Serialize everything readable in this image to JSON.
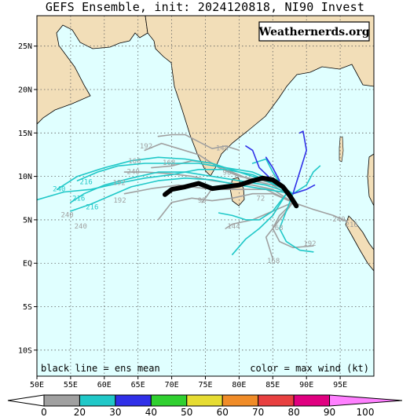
{
  "title": "GEFS Ensemble, init: 2024120818, NI90 Invest",
  "brand": "Weathernerds.org",
  "footer": {
    "left": "black line = ens mean",
    "right": "color = max wind (kt)"
  },
  "lat_labels": [
    "25N",
    "20N",
    "15N",
    "10N",
    "5N",
    "EQ",
    "5S",
    "10S"
  ],
  "lon_labels": [
    "50E",
    "55E",
    "60E",
    "65E",
    "70E",
    "75E",
    "80E",
    "85E",
    "90E",
    "95E"
  ],
  "colorbar": {
    "labels": [
      "0",
      "20",
      "30",
      "40",
      "50",
      "60",
      "70",
      "80",
      "90",
      "100"
    ],
    "colors": [
      "#a0a0a0",
      "#20c8c8",
      "#3030e8",
      "#30d030",
      "#e6dc32",
      "#f08c28",
      "#e84040",
      "#e00080",
      "#ff80ff"
    ]
  },
  "track_colors": {
    "weak": "#a0a0a0",
    "ts": "#20c8c8",
    "strong": "#3030e8",
    "mean": "#000000"
  },
  "hour_labels": [
    {
      "text": "192",
      "lon": 66.2,
      "lat": 13.2,
      "c": "weak"
    },
    {
      "text": "168",
      "lon": 64.5,
      "lat": 11.5,
      "c": "weak"
    },
    {
      "text": "168",
      "lon": 69.6,
      "lat": 11.3,
      "c": "weak"
    },
    {
      "text": "144",
      "lon": 77.5,
      "lat": 13.0,
      "c": "weak"
    },
    {
      "text": "96",
      "lon": 78.2,
      "lat": 10.2,
      "c": "weak"
    },
    {
      "text": "240",
      "lon": 64.3,
      "lat": 10.3,
      "c": "weak"
    },
    {
      "text": "192",
      "lon": 62.2,
      "lat": 9.0,
      "c": "weak"
    },
    {
      "text": "216",
      "lon": 57.3,
      "lat": 9.1,
      "c": "ts"
    },
    {
      "text": "240",
      "lon": 53.3,
      "lat": 8.3,
      "c": "ts"
    },
    {
      "text": "216",
      "lon": 56.2,
      "lat": 7.2,
      "c": "ts"
    },
    {
      "text": "216",
      "lon": 58.2,
      "lat": 6.2,
      "c": "ts"
    },
    {
      "text": "192",
      "lon": 62.3,
      "lat": 7.0,
      "c": "weak"
    },
    {
      "text": "240",
      "lon": 54.5,
      "lat": 5.3,
      "c": "weak"
    },
    {
      "text": "240",
      "lon": 56.5,
      "lat": 4.0,
      "c": "weak"
    },
    {
      "text": "95",
      "lon": 74.5,
      "lat": 7.0,
      "c": "weak"
    },
    {
      "text": "72",
      "lon": 83.2,
      "lat": 7.2,
      "c": "weak"
    },
    {
      "text": "144",
      "lon": 79.2,
      "lat": 4.0,
      "c": "weak"
    },
    {
      "text": "168",
      "lon": 85.6,
      "lat": 3.8,
      "c": "weak"
    },
    {
      "text": "192",
      "lon": 90.5,
      "lat": 2.0,
      "c": "weak"
    },
    {
      "text": "168",
      "lon": 85.1,
      "lat": 0.0,
      "c": "weak"
    },
    {
      "text": "240",
      "lon": 94.8,
      "lat": 4.8,
      "c": "weak"
    },
    {
      "text": "216",
      "lon": 96.7,
      "lat": 4.2,
      "c": "weak"
    }
  ],
  "tracks": [
    {
      "c": "weak",
      "pts": [
        [
          88.5,
          7
        ],
        [
          86,
          9
        ],
        [
          83,
          9.6
        ],
        [
          80,
          10
        ],
        [
          77,
          11
        ],
        [
          74,
          12.5
        ],
        [
          71,
          13.2
        ],
        [
          68.5,
          13.8
        ],
        [
          66,
          13
        ]
      ]
    },
    {
      "c": "weak",
      "pts": [
        [
          88,
          7.5
        ],
        [
          85,
          9
        ],
        [
          82,
          9.5
        ],
        [
          79,
          10.5
        ],
        [
          76,
          11.5
        ],
        [
          73,
          11.8
        ],
        [
          70,
          11.2
        ],
        [
          67,
          11
        ]
      ]
    },
    {
      "c": "weak",
      "pts": [
        [
          88,
          7
        ],
        [
          85,
          8.5
        ],
        [
          82,
          9
        ],
        [
          79,
          9.2
        ],
        [
          76,
          9.5
        ],
        [
          73,
          10
        ],
        [
          70,
          10.3
        ],
        [
          66,
          10.5
        ],
        [
          63,
          10.5
        ]
      ]
    },
    {
      "c": "weak",
      "pts": [
        [
          88,
          7
        ],
        [
          84,
          8.5
        ],
        [
          81,
          8.5
        ],
        [
          78,
          8.5
        ],
        [
          75,
          8.6
        ],
        [
          71,
          9
        ],
        [
          67,
          8.6
        ],
        [
          63,
          8
        ]
      ]
    },
    {
      "c": "weak",
      "pts": [
        [
          88,
          7
        ],
        [
          85,
          8
        ],
        [
          82,
          8
        ],
        [
          79,
          7.5
        ],
        [
          76,
          7.2
        ],
        [
          73,
          7.5
        ],
        [
          70,
          7
        ],
        [
          68,
          5
        ]
      ]
    },
    {
      "c": "weak",
      "pts": [
        [
          88,
          7
        ],
        [
          85,
          6
        ],
        [
          82,
          5
        ],
        [
          79,
          4.5
        ],
        [
          78,
          4
        ]
      ]
    },
    {
      "c": "weak",
      "pts": [
        [
          88,
          7
        ],
        [
          86,
          5.5
        ],
        [
          85,
          4
        ],
        [
          86,
          2.5
        ],
        [
          88,
          1.8
        ],
        [
          91,
          2
        ]
      ]
    },
    {
      "c": "weak",
      "pts": [
        [
          88,
          7
        ],
        [
          86,
          5
        ],
        [
          84,
          3
        ],
        [
          85,
          0.5
        ]
      ]
    },
    {
      "c": "weak",
      "pts": [
        [
          88,
          7
        ],
        [
          91,
          6.2
        ],
        [
          94,
          5.5
        ],
        [
          96,
          4.8
        ]
      ]
    },
    {
      "c": "weak",
      "pts": [
        [
          80,
          13
        ],
        [
          78,
          13.5
        ],
        [
          76,
          13.2
        ],
        [
          74,
          14
        ],
        [
          72,
          14.8
        ],
        [
          70,
          14.8
        ],
        [
          68,
          14.6
        ]
      ]
    },
    {
      "c": "weak",
      "pts": [
        [
          78,
          9
        ],
        [
          76,
          8.6
        ],
        [
          75,
          7.5
        ],
        [
          74.5,
          7
        ]
      ]
    },
    {
      "c": "ts",
      "pts": [
        [
          88,
          8
        ],
        [
          85,
          9.5
        ],
        [
          82,
          10.5
        ],
        [
          78,
          11
        ],
        [
          74,
          11.5
        ],
        [
          70,
          11.5
        ],
        [
          66,
          11.5
        ],
        [
          62,
          11.2
        ],
        [
          59,
          10.5
        ],
        [
          56,
          9.5
        ]
      ]
    },
    {
      "c": "ts",
      "pts": [
        [
          88,
          8
        ],
        [
          84,
          9.5
        ],
        [
          80,
          10.5
        ],
        [
          76,
          11.5
        ],
        [
          72,
          12
        ],
        [
          68,
          12.2
        ],
        [
          64,
          11.8
        ],
        [
          60,
          11
        ],
        [
          56,
          10
        ],
        [
          53,
          8.5
        ]
      ]
    },
    {
      "c": "ts",
      "pts": [
        [
          88,
          8
        ],
        [
          84,
          9
        ],
        [
          80,
          9.5
        ],
        [
          76,
          10
        ],
        [
          72,
          10.5
        ],
        [
          68,
          10.5
        ],
        [
          64,
          9.8
        ],
        [
          60,
          9
        ],
        [
          57,
          8
        ],
        [
          55,
          7
        ]
      ]
    },
    {
      "c": "ts",
      "pts": [
        [
          88,
          8
        ],
        [
          84,
          8.5
        ],
        [
          80,
          9
        ],
        [
          76,
          9.6
        ],
        [
          72,
          9.8
        ],
        [
          68,
          9.5
        ],
        [
          64,
          8.8
        ],
        [
          61,
          7.8
        ],
        [
          58,
          6.8
        ],
        [
          55,
          6
        ]
      ]
    },
    {
      "c": "ts",
      "pts": [
        [
          88,
          8
        ],
        [
          85,
          9.2
        ],
        [
          82,
          10.2
        ],
        [
          78,
          10.8
        ],
        [
          74,
          10.8
        ],
        [
          70,
          10.2
        ],
        [
          66,
          9.8
        ],
        [
          62,
          9.2
        ],
        [
          58,
          8.5
        ],
        [
          54,
          8.2
        ],
        [
          50,
          7.3
        ]
      ]
    },
    {
      "c": "ts",
      "pts": [
        [
          87,
          8
        ],
        [
          85,
          6
        ],
        [
          83,
          5
        ],
        [
          81,
          5
        ],
        [
          79,
          5.5
        ],
        [
          77,
          5.8
        ]
      ]
    },
    {
      "c": "ts",
      "pts": [
        [
          87,
          8
        ],
        [
          85,
          5.5
        ],
        [
          83,
          4
        ],
        [
          81,
          2.8
        ],
        [
          79,
          1
        ]
      ]
    },
    {
      "c": "ts",
      "pts": [
        [
          88,
          8
        ],
        [
          87,
          6
        ],
        [
          86,
          4
        ],
        [
          87,
          2.5
        ],
        [
          89,
          1.5
        ],
        [
          91,
          1.3
        ]
      ]
    },
    {
      "c": "ts",
      "pts": [
        [
          88,
          8
        ],
        [
          90,
          9
        ],
        [
          91,
          10.5
        ],
        [
          92,
          11.2
        ]
      ]
    },
    {
      "c": "ts",
      "pts": [
        [
          87,
          8
        ],
        [
          85,
          10.5
        ],
        [
          84,
          12
        ],
        [
          82,
          11.5
        ]
      ]
    },
    {
      "c": "strong",
      "pts": [
        [
          88,
          8
        ],
        [
          89,
          10.5
        ],
        [
          90,
          13
        ],
        [
          89.5,
          15.2
        ],
        [
          89,
          15
        ]
      ]
    },
    {
      "c": "strong",
      "pts": [
        [
          85,
          9.5
        ],
        [
          83,
          11
        ],
        [
          82,
          13
        ],
        [
          81,
          13.5
        ]
      ]
    },
    {
      "c": "strong",
      "pts": [
        [
          86,
          9.5
        ],
        [
          85,
          11
        ],
        [
          84,
          12.2
        ]
      ]
    },
    {
      "c": "strong",
      "pts": [
        [
          88,
          8
        ],
        [
          90,
          8.5
        ],
        [
          91.2,
          9
        ]
      ]
    },
    {
      "c": "mean",
      "pts": [
        [
          88.5,
          6.6
        ],
        [
          87.5,
          7.8
        ],
        [
          86.5,
          8.8
        ],
        [
          85,
          9.6
        ],
        [
          83.5,
          9.8
        ],
        [
          82,
          9.5
        ],
        [
          80,
          9
        ],
        [
          78,
          8.8
        ],
        [
          76,
          8.6
        ],
        [
          74,
          9.2
        ],
        [
          72,
          8.8
        ],
        [
          70,
          8.5
        ],
        [
          69,
          7.9
        ]
      ]
    }
  ]
}
